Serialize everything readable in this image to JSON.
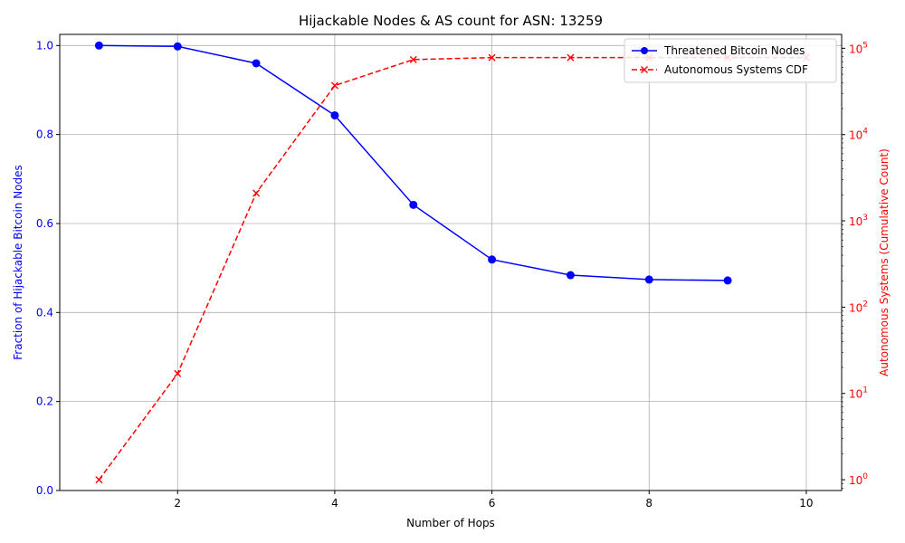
{
  "chart_data": {
    "type": "line",
    "title": "Hijackable Nodes & AS count for ASN: 13259",
    "xlabel": "Number of Hops",
    "x_ticks": [
      2,
      4,
      6,
      8,
      10
    ],
    "xlim": [
      0.5,
      10.45
    ],
    "grid": true,
    "legend_position": "top-right",
    "left_axis": {
      "label": "Fraction of Hijackable Bitcoin Nodes",
      "color": "#0000ff",
      "ylim": [
        0.0,
        1.025
      ],
      "ticks": [
        0.0,
        0.2,
        0.4,
        0.6,
        0.8,
        1.0
      ],
      "tick_labels": [
        "0.0",
        "0.2",
        "0.4",
        "0.6",
        "0.8",
        "1.0"
      ]
    },
    "right_axis": {
      "label": "Autonomous Systems (Cumulative Count)",
      "color": "#ff0000",
      "scale": "log",
      "ticks": [
        1,
        10,
        100,
        1000,
        10000,
        100000
      ],
      "tick_base": "10",
      "tick_exponents": [
        "0",
        "1",
        "2",
        "3",
        "4",
        "5"
      ]
    },
    "series": [
      {
        "name": "Threatened Bitcoin Nodes",
        "axis": "left",
        "color": "#0000ff",
        "line_style": "solid",
        "marker": "circle",
        "x": [
          1,
          2,
          3,
          4,
          5,
          6,
          7,
          8,
          9
        ],
        "y": [
          1.0,
          0.998,
          0.96,
          0.843,
          0.642,
          0.519,
          0.484,
          0.474,
          0.472
        ]
      },
      {
        "name": "Autonomous Systems CDF",
        "axis": "right",
        "color": "#ff0000",
        "line_style": "dashed",
        "marker": "x",
        "x": [
          1,
          2,
          3,
          4,
          5,
          6,
          7,
          8,
          9,
          10
        ],
        "y": [
          1,
          17,
          2100,
          37000,
          74000,
          78000,
          78000,
          78000,
          78000,
          78000
        ]
      }
    ]
  }
}
